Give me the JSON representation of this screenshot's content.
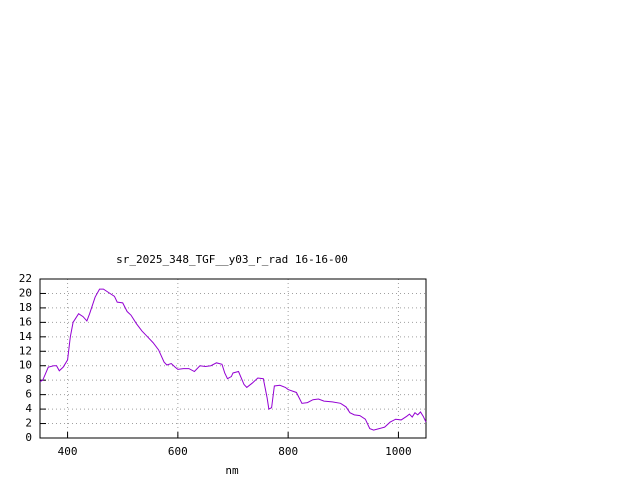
{
  "chart_data": {
    "type": "line",
    "title": "sr_2025_348_TGF__y03_r_rad 16-16-00",
    "x_label": "nm",
    "color": "#9400d3",
    "grid": true,
    "xlim": [
      350,
      1050
    ],
    "xticks": [
      400,
      600,
      800,
      1000
    ],
    "ylim": [
      0,
      22
    ],
    "yticks": [
      0,
      2,
      4,
      6,
      8,
      10,
      12,
      14,
      16,
      18,
      20,
      22
    ],
    "x": [
      350,
      355,
      365,
      375,
      380,
      385,
      392,
      400,
      405,
      410,
      420,
      428,
      435,
      440,
      450,
      458,
      465,
      475,
      485,
      490,
      500,
      508,
      515,
      525,
      535,
      545,
      555,
      565,
      575,
      580,
      588,
      595,
      600,
      610,
      620,
      630,
      640,
      650,
      660,
      670,
      680,
      685,
      690,
      697,
      700,
      710,
      720,
      725,
      735,
      745,
      755,
      762,
      765,
      770,
      775,
      785,
      795,
      800,
      815,
      825,
      835,
      845,
      855,
      865,
      880,
      895,
      905,
      912,
      920,
      930,
      940,
      948,
      955,
      965,
      975,
      985,
      995,
      1005,
      1015,
      1020,
      1025,
      1030,
      1035,
      1040,
      1045,
      1050
    ],
    "values": [
      7.8,
      8,
      9.8,
      10,
      10,
      9.3,
      9.8,
      10.8,
      14,
      16,
      17.2,
      16.8,
      16.2,
      17.2,
      19.5,
      20.6,
      20.6,
      20.1,
      19.6,
      18.8,
      18.7,
      17.5,
      17,
      15.8,
      14.8,
      14,
      13.2,
      12.2,
      10.5,
      10.1,
      10.3,
      9.8,
      9.5,
      9.6,
      9.6,
      9.2,
      10,
      9.9,
      10,
      10.4,
      10.2,
      9,
      8.2,
      8.5,
      9,
      9.2,
      7.4,
      7,
      7.6,
      8.3,
      8.2,
      5.5,
      4,
      4.2,
      7.2,
      7.3,
      7,
      6.7,
      6.3,
      4.8,
      4.9,
      5.3,
      5.4,
      5.1,
      5,
      4.8,
      4.3,
      3.5,
      3.2,
      3.1,
      2.6,
      1.3,
      1.1,
      1.3,
      1.5,
      2.2,
      2.6,
      2.5,
      3,
      3.3,
      2.9,
      3.5,
      3.2,
      3.6,
      3,
      2.2
    ]
  }
}
